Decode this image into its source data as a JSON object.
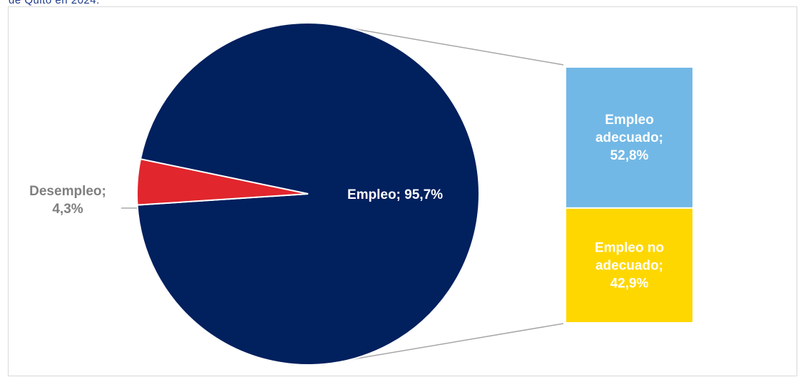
{
  "title_fragment": "de Quito en 2024.",
  "chart_data": {
    "type": "pie",
    "title": "",
    "slices": [
      {
        "label": "Empleo",
        "value": 95.7,
        "display": "Empleo; 95,7%",
        "color": "#01205e"
      },
      {
        "label": "Desempleo",
        "value": 4.3,
        "display_lines": [
          "Desempleo;",
          "4,3%"
        ],
        "color": "#e1262d"
      }
    ],
    "breakdown": {
      "parent": "Empleo",
      "bars": [
        {
          "label": "Empleo adecuado",
          "value": 52.8,
          "display_lines": [
            "Empleo",
            "adecuado;",
            "52,8%"
          ],
          "color": "#72b8e6"
        },
        {
          "label": "Empleo no adecuado",
          "value": 42.9,
          "display_lines": [
            "Empleo no",
            "adecuado;",
            "42,9%"
          ],
          "color": "#ffd700"
        }
      ]
    },
    "colors": {
      "connector": "#a6a6a6",
      "outside_label": "#7f7f7f",
      "inside_label": "#ffffff"
    }
  }
}
